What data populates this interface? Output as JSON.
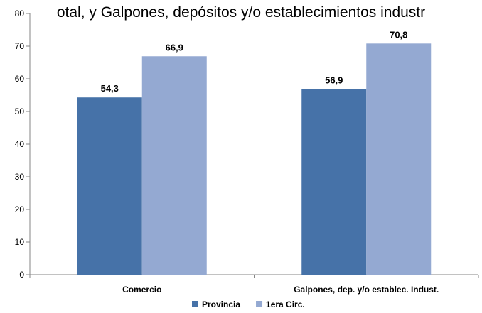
{
  "chart_data": {
    "type": "bar",
    "title": "otal, y Galpones, depósitos y/o establecimientos industr",
    "categories": [
      "Comercio",
      "Galpones, dep. y/o establec. Indust."
    ],
    "series": [
      {
        "name": "Provincia",
        "values": [
          54.3,
          56.9
        ],
        "color": "#4672a8",
        "labels": [
          "54,3",
          "56,9"
        ]
      },
      {
        "name": "1era Circ.",
        "values": [
          66.9,
          70.8
        ],
        "color": "#94a9d2",
        "labels": [
          "66,9",
          "70,8"
        ]
      }
    ],
    "ylim": [
      0,
      80
    ],
    "yticks": [
      0,
      10,
      20,
      30,
      40,
      50,
      60,
      70,
      80
    ],
    "grid": false,
    "legend_position": "bottom",
    "xlabel": "",
    "ylabel": ""
  }
}
